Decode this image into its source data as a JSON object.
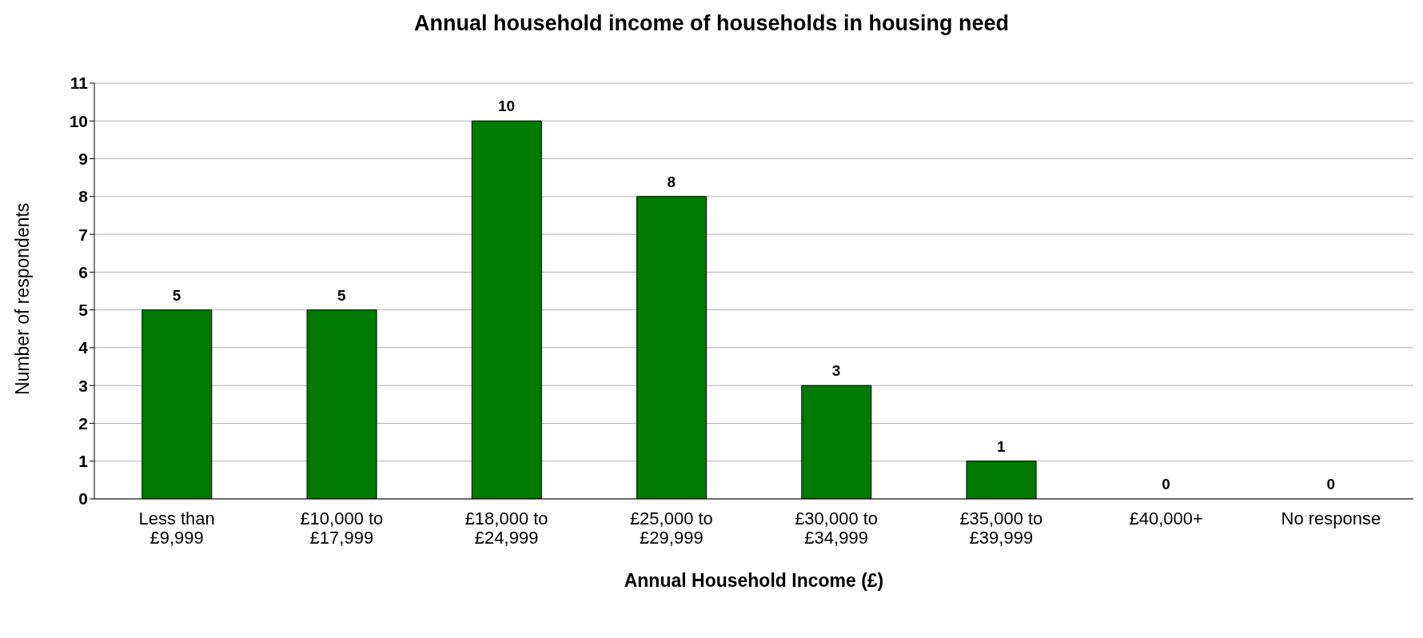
{
  "chart_data": {
    "type": "bar",
    "title": "Annual household income of households in housing need",
    "xlabel": "Annual Household Income (£)",
    "ylabel": "Number of respondents",
    "categories": [
      "Less than £9,999",
      "£10,000 to £17,999",
      "£18,000 to £24,999",
      "£25,000 to £29,999",
      "£30,000 to £34,999",
      "£35,000 to £39,999",
      "£40,000+",
      "No response"
    ],
    "values": [
      5,
      5,
      10,
      8,
      3,
      1,
      0,
      0
    ],
    "color": "#007a00",
    "ylim": [
      0,
      11
    ],
    "yticks": [
      0,
      1,
      2,
      3,
      4,
      5,
      6,
      7,
      8,
      9,
      10,
      11
    ],
    "grid": "y",
    "data_labels": true
  }
}
